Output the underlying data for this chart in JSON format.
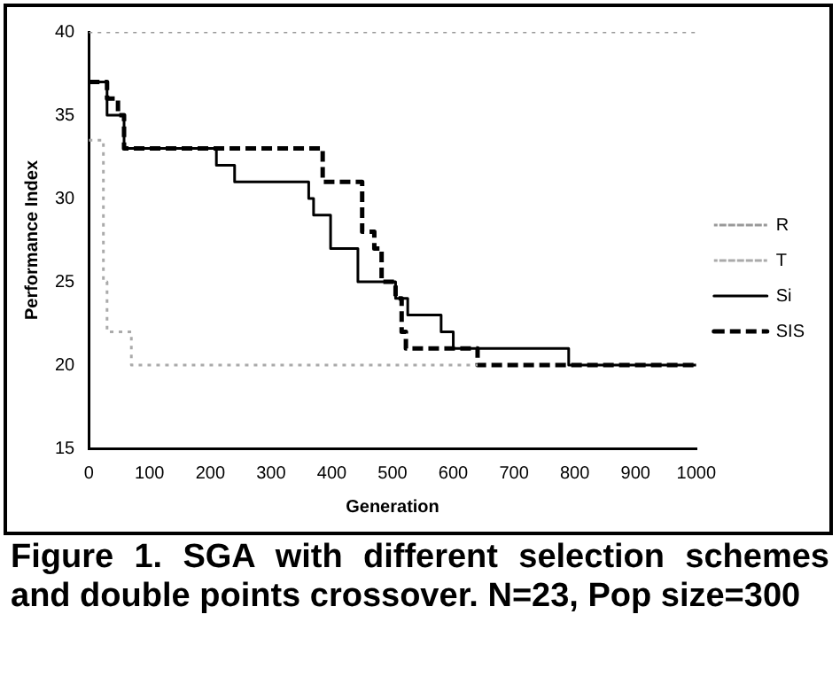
{
  "chart_data": {
    "type": "step",
    "xlabel": "Generation",
    "ylabel": "Performance Index",
    "xlim": [
      0,
      1000
    ],
    "xticks": [
      0,
      100,
      200,
      300,
      400,
      500,
      600,
      700,
      800,
      900,
      1000
    ],
    "ylim": [
      15,
      40
    ],
    "yticks": [
      15,
      20,
      25,
      30,
      35,
      40
    ],
    "grid": false,
    "legend": "right",
    "marker": "none",
    "series": [
      {
        "name": "R",
        "color": "#999999",
        "line_style": "dotted",
        "x": [
          0,
          1000
        ],
        "values": [
          40,
          40
        ]
      },
      {
        "name": "T",
        "color": "#aaaaaa",
        "line_style": "dotted",
        "x": [
          0,
          24,
          30,
          70,
          640
        ],
        "values": [
          33.5,
          25,
          22,
          20,
          20
        ]
      },
      {
        "name": "Si",
        "color": "#000000",
        "line_style": "solid",
        "x": [
          0,
          30,
          58,
          210,
          240,
          362,
          370,
          398,
          443,
          505,
          525,
          580,
          600,
          790,
          1000
        ],
        "values": [
          37,
          35,
          33,
          32,
          31,
          30,
          29,
          27,
          25,
          24,
          23,
          22,
          21,
          20,
          20
        ]
      },
      {
        "name": "SIS",
        "color": "#000000",
        "line_style": "dashed",
        "x": [
          0,
          30,
          48,
          58,
          385,
          450,
          470,
          482,
          505,
          515,
          522,
          640,
          1000
        ],
        "values": [
          37,
          36,
          35,
          33,
          31,
          28,
          27,
          25,
          24,
          22,
          21,
          20,
          20
        ]
      }
    ],
    "annotations": [
      "Figure 1. SGA with different selection schemes and double points crossover. N=23, Pop size=300"
    ]
  }
}
